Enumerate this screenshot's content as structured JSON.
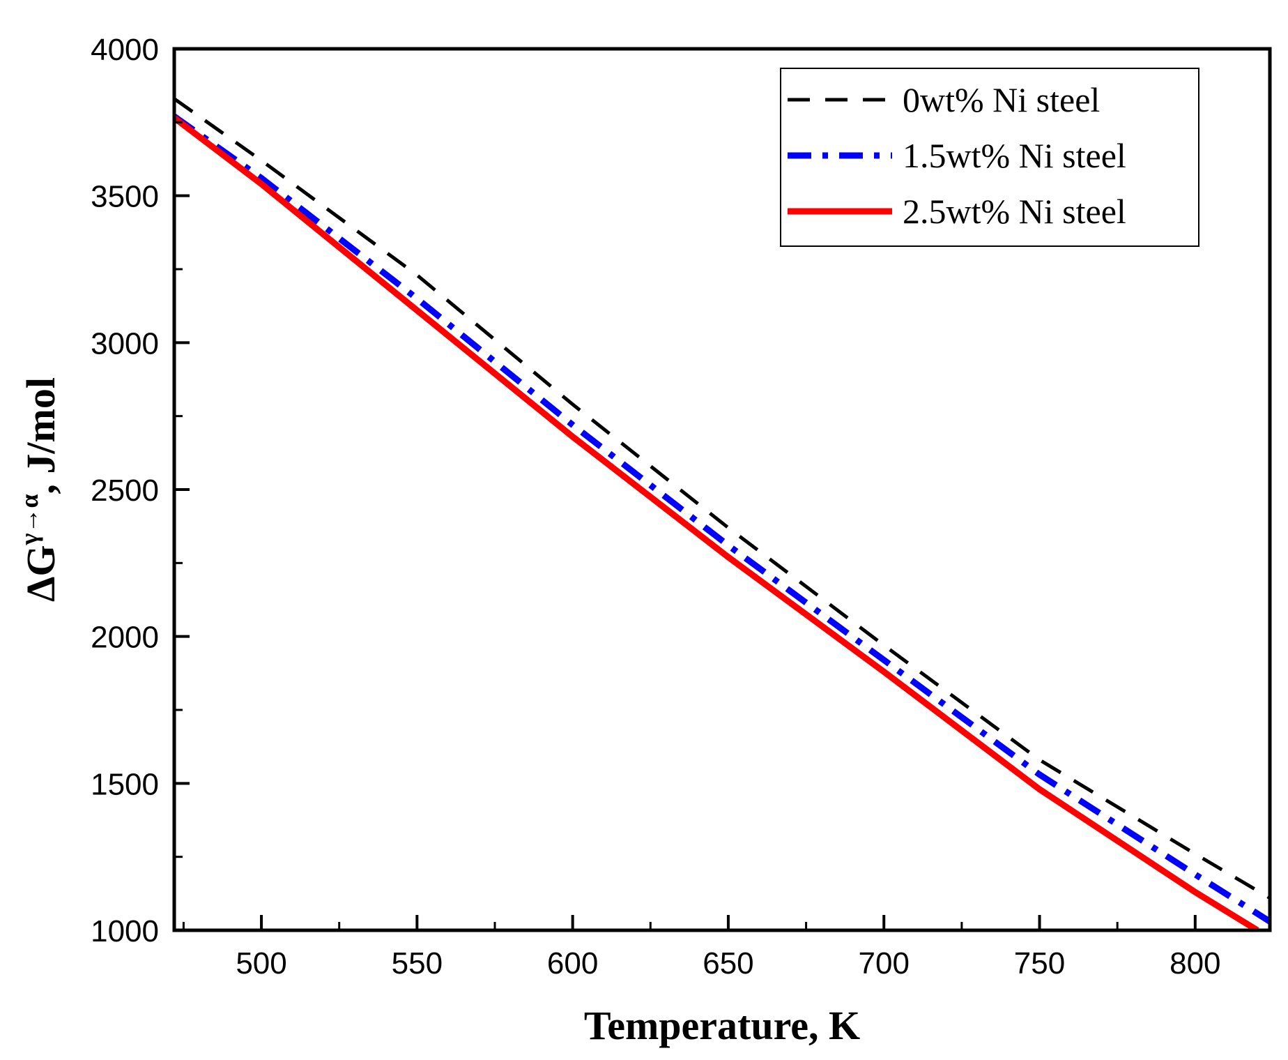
{
  "chart_data": {
    "type": "line",
    "title": "",
    "xlabel": "Temperature, K",
    "ylabel_prefix": "ΔG",
    "ylabel_sup": "γ→α",
    "ylabel_suffix": ", J/mol",
    "xlim": [
      472,
      824
    ],
    "ylim": [
      1000,
      4000
    ],
    "xticks": [
      500,
      550,
      600,
      650,
      700,
      750,
      800
    ],
    "xtick_labels": [
      "500",
      "550",
      "600",
      "650",
      "700",
      "750",
      "800"
    ],
    "yticks": [
      1000,
      1500,
      2000,
      2500,
      3000,
      3500,
      4000
    ],
    "ytick_labels": [
      "1000",
      "1500",
      "2000",
      "2500",
      "3000",
      "3500",
      "4000"
    ],
    "grid": false,
    "legend_position": "top-right",
    "series": [
      {
        "name": "0wt% Ni steel",
        "color": "#000000",
        "style": "dashed",
        "x": [
          472,
          500,
          550,
          600,
          650,
          700,
          750,
          800,
          824
        ],
        "y": [
          3830,
          3620,
          3230,
          2790,
          2370,
          1970,
          1580,
          1260,
          1110
        ]
      },
      {
        "name": "1.5wt% Ni steel",
        "color": "#0000FF",
        "style": "dashdot",
        "x": [
          472,
          500,
          550,
          600,
          650,
          700,
          750,
          800,
          824
        ],
        "y": [
          3770,
          3560,
          3150,
          2720,
          2310,
          1920,
          1530,
          1190,
          1030
        ]
      },
      {
        "name": "2.5wt% Ni steel",
        "color": "#FF0000",
        "style": "solid",
        "x": [
          472,
          500,
          550,
          600,
          650,
          700,
          750,
          800,
          820
        ],
        "y": [
          3765,
          3540,
          3110,
          2680,
          2270,
          1880,
          1480,
          1130,
          1000
        ]
      }
    ]
  }
}
